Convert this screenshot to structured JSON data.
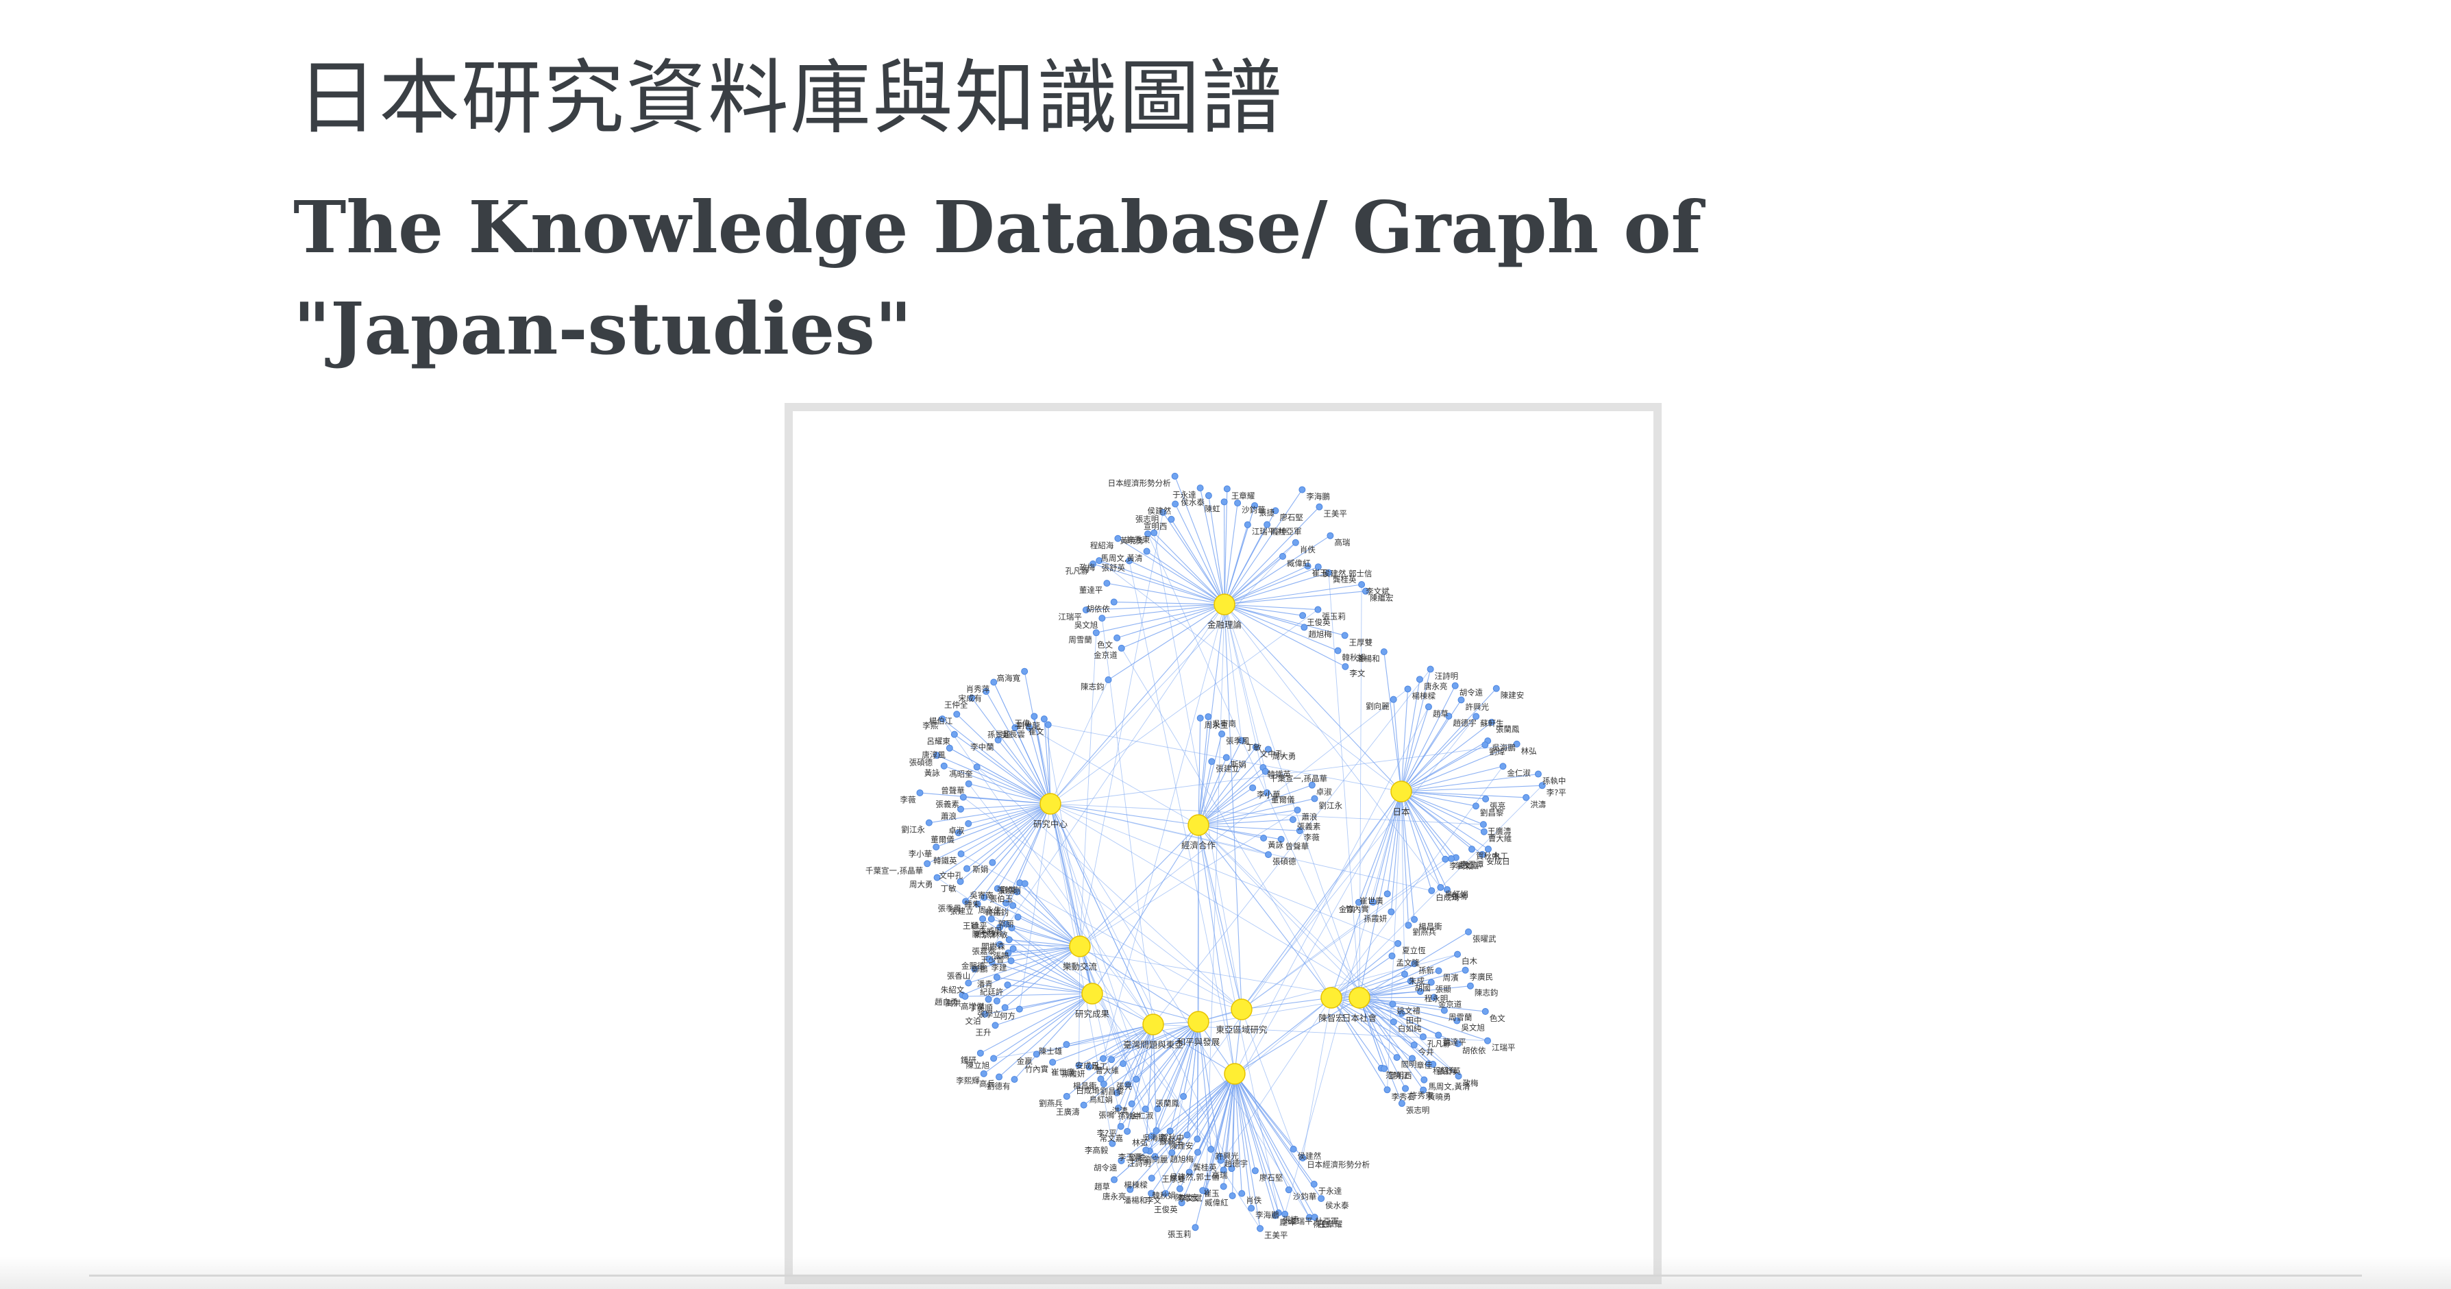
{
  "page": {
    "title_zh": "日本研究資料庫與知識圖譜",
    "title_en": "The Knowledge Database/ Graph of \"Japan-studies\""
  },
  "graph": {
    "hub_color": "#ffee33",
    "hub_stroke": "#e6c200",
    "leaf_color": "#6fa3f0",
    "edge_color": "#6f9ef0",
    "hubs": [
      {
        "id": "h0",
        "label": "金融理論"
      },
      {
        "id": "h1",
        "label": "日本"
      },
      {
        "id": "h2",
        "label": "研究中心"
      },
      {
        "id": "h3",
        "label": "經濟合作"
      },
      {
        "id": "h4",
        "label": "樂動交流"
      },
      {
        "id": "h5",
        "label": "研究成果"
      },
      {
        "id": "h6",
        "label": "和平與發展"
      },
      {
        "id": "h7",
        "label": "東亞區域研究"
      },
      {
        "id": "h8",
        "label": "臺灣問題與東亞"
      },
      {
        "id": "h9",
        "label": "陳智宏"
      },
      {
        "id": "h10",
        "label": "日本社會"
      }
    ],
    "labels": [
      "陳志鈞",
      "金京道",
      "色文",
      "周雪蘭",
      "吳文旭",
      "江瑞平",
      "胡依依",
      "董達平",
      "孔凡靜",
      "政梅",
      "張舒英",
      "程紹海",
      "馬周文,黃清",
      "黃曉勇",
      "許秀東",
      "張志明",
      "宣明西",
      "侯建然",
      "日本經濟形勢分析",
      "于永達",
      "侯水泰",
      "陳虹",
      "王章耀",
      "沙鈞華",
      "江瑞平,杜亞軍",
      "張捷",
      "龐坤",
      "廖石堅",
      "李海鵬",
      "王美平",
      "肖佚",
      "臧偉紅",
      "高瑞",
      "崔玉",
      "侯建然,郭士信",
      "龔桂英",
      "李文斌",
      "陳繼宏",
      "張玉莉",
      "王俊英",
      "王厚雙",
      "趙旭梅",
      "韓秋娟",
      "李文",
      "潘楊和",
      "劉向麗",
      "楊棟樑",
      "唐永亮",
      "汪詩明",
      "趙草",
      "胡令遠",
      "趙德宇",
      "許興光",
      "陳建安",
      "蘇軒生",
      "張蘭鳳",
      "吳海鵬",
      "劉煒",
      "林弘",
      "金仁淑",
      "孫執中",
      "李?平",
      "洪濤",
      "張亮",
      "劉昌黎",
      "王廣濤",
      "曹大維",
      "水工",
      "安成日",
      "賀秋中",
      "李玉潭",
      "常文嘉",
      "李高毅",
      "張鳴",
      "鳥紅娟",
      "白成琦",
      "楊昌衝",
      "劉燕兵",
      "孫霞妍",
      "崔世廣",
      "竹內實",
      "金嬴",
      "陳士雄",
      "周永生",
      "吳寄南",
      "張建立",
      "張季風",
      "斯娟",
      "丁敏",
      "文中孔",
      "周大勇",
      "韓鐵英",
      "千葉宣一,孫晶華",
      "李小華",
      "董爾儀",
      "卓淑",
      "劉江永",
      "蕭浪",
      "張義素",
      "李薇",
      "曾聲華",
      "黃詠",
      "張碩德",
      "馮昭奎",
      "唐淳風",
      "呂耀東",
      "李熙",
      "楊伯江",
      "李中蘭",
      "王仲全",
      "宋成有",
      "肖秀萍",
      "孫景超",
      "吳長雲",
      "高海寬",
      "王偉",
      "劉世龍",
      "崔文",
      "張學立",
      "丁英順",
      "高增傑",
      "趙自勇",
      "朱紹文",
      "張香山",
      "金熙德",
      "王少普",
      "張嘉泰",
      "閻樹森",
      "新京,林敏",
      "徐平",
      "郭丽",
      "鍾朱",
      "韓鐵鈞",
      "張伯玉",
      "劉傑",
      "張曉剛",
      "劉德有",
      "高兵",
      "李熙輝",
      "陳立旭",
      "鍾研",
      "王升",
      "何方",
      "文泊",
      "高洪",
      "紀廷許",
      "潘青",
      "鄭鵬",
      "李建",
      "張鳴",
      "王穎",
      "李威周",
      "夏立恆",
      "孟文隆",
      "孫新",
      "朱成",
      "胡國",
      "程永明",
      "姚文禮",
      "田中",
      "白如純",
      "今井",
      "章佳",
      "閻明",
      "范曉江",
      "李秀石",
      "張曜武",
      "白木",
      "周濱",
      "李廣民",
      "張顯"
    ]
  }
}
